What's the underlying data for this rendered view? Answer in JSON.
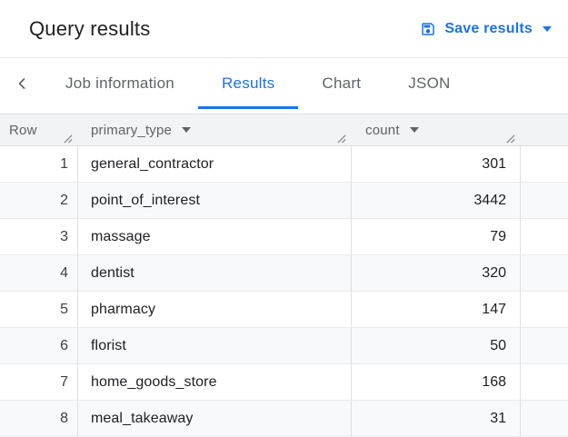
{
  "colors": {
    "accent": "#1a73e8",
    "header_bg": "#f1f3f4",
    "stripe_bg": "#f8f9fa",
    "border": "#e0e0e0",
    "header_border": "#dadce0",
    "text_primary": "#202124",
    "text_secondary": "#5f6368"
  },
  "icons": {
    "save_results": "save-icon",
    "save_results_caret": "caret-down-icon",
    "tabs_back": "chevron-left-icon",
    "column_menu": "caret-down-icon",
    "column_resize": "resize-handle-icon"
  },
  "header": {
    "title": "Query results",
    "save_results_label": "Save results"
  },
  "tab_bar": {
    "tabs": [
      {
        "label": "Job information",
        "active": false
      },
      {
        "label": "Results",
        "active": true
      },
      {
        "label": "Chart",
        "active": false
      },
      {
        "label": "JSON",
        "active": false
      }
    ]
  },
  "results_table": {
    "columns": [
      {
        "label": "Row",
        "has_menu": false
      },
      {
        "label": "primary_type",
        "has_menu": true
      },
      {
        "label": "count",
        "has_menu": true
      }
    ],
    "rows": [
      {
        "row": "1",
        "primary_type": "general_contractor",
        "count": "301"
      },
      {
        "row": "2",
        "primary_type": "point_of_interest",
        "count": "3442"
      },
      {
        "row": "3",
        "primary_type": "massage",
        "count": "79"
      },
      {
        "row": "4",
        "primary_type": "dentist",
        "count": "320"
      },
      {
        "row": "5",
        "primary_type": "pharmacy",
        "count": "147"
      },
      {
        "row": "6",
        "primary_type": "florist",
        "count": "50"
      },
      {
        "row": "7",
        "primary_type": "home_goods_store",
        "count": "168"
      },
      {
        "row": "8",
        "primary_type": "meal_takeaway",
        "count": "31"
      }
    ]
  }
}
